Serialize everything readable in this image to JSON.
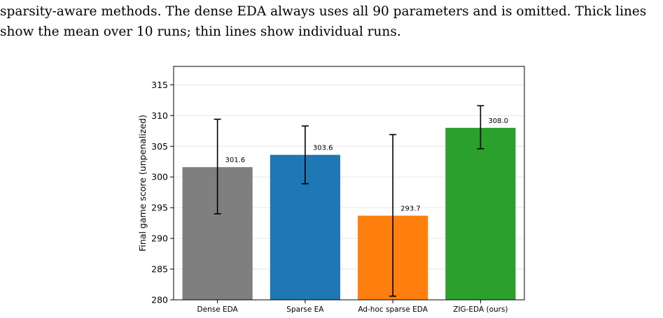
{
  "caption": {
    "line1": "sparsity-aware methods. The dense EDA always uses all 90 parameters and is omitted. Thick lines",
    "line2": "show the mean over 10 runs; thin lines show individual runs."
  },
  "chart_data": {
    "type": "bar",
    "categories": [
      "Dense EDA",
      "Sparse EA",
      "Ad-hoc sparse EDA",
      "ZIG-EDA (ours)"
    ],
    "values": [
      301.6,
      303.6,
      293.7,
      308.0
    ],
    "value_labels": [
      "301.6",
      "303.6",
      "293.7",
      "308.0"
    ],
    "error_low": [
      294.0,
      298.9,
      280.6,
      304.6
    ],
    "error_high": [
      309.4,
      308.3,
      306.9,
      311.6
    ],
    "colors": [
      "#7f7f7f",
      "#1f77b4",
      "#ff7f0e",
      "#2ca02c"
    ],
    "ylabel": "Final game score (unpenalized)",
    "xlabel": "",
    "title": "",
    "ylim": [
      280,
      318
    ],
    "yticks": [
      280,
      285,
      290,
      295,
      300,
      305,
      310,
      315
    ],
    "ytick_labels": [
      "280",
      "285",
      "290",
      "295",
      "300",
      "305",
      "310",
      "315"
    ],
    "grid": "horizontal",
    "legend": "none"
  }
}
